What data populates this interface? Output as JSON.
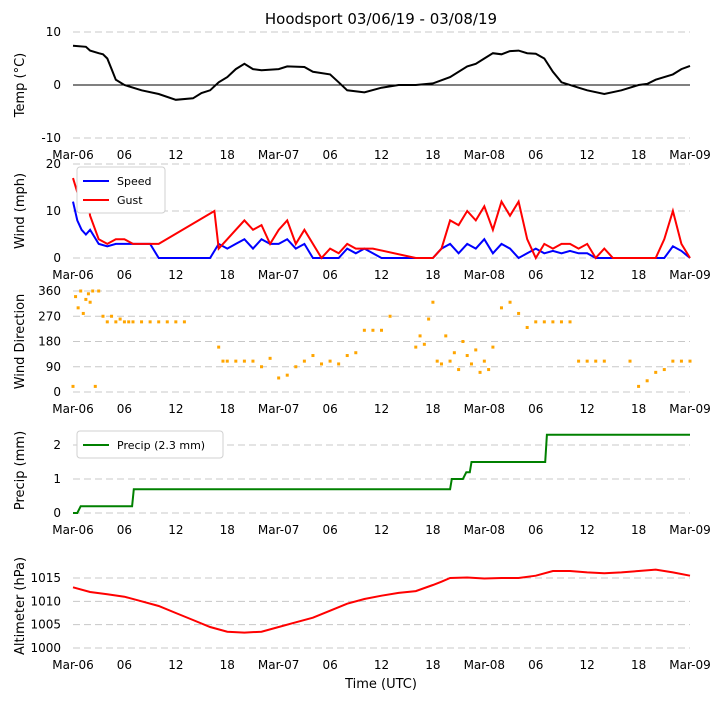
{
  "figure": {
    "title": "Hoodsport 03/06/19 - 03/08/19",
    "xlabel": "Time (UTC)"
  },
  "chart_data": [
    {
      "id": "temp",
      "type": "line",
      "ylabel": "Temp (°C)",
      "ylim": [
        -10,
        10
      ],
      "yticks": [
        -10,
        0,
        10
      ],
      "grid": true,
      "zero_line": true,
      "xlim": [
        0,
        72
      ],
      "xtick_labels": [
        "Mar-06",
        "06",
        "12",
        "18",
        "Mar-07",
        "06",
        "12",
        "18",
        "Mar-08",
        "06",
        "12",
        "18",
        "Mar-09"
      ],
      "series": [
        {
          "name": "Temp",
          "color": "#000000",
          "x": [
            0,
            1.5,
            2,
            3,
            3.5,
            4,
            4.5,
            5,
            6,
            8,
            10,
            12,
            14,
            15,
            16,
            17,
            18,
            19,
            20,
            21,
            22,
            24,
            25,
            27,
            28,
            30,
            31,
            32,
            34,
            36,
            38,
            40,
            42,
            44,
            46,
            47,
            48,
            49,
            50,
            51,
            52,
            53,
            54,
            55,
            56,
            57,
            59,
            60,
            62,
            64,
            66,
            67,
            68,
            70,
            71,
            72
          ],
          "y": [
            7.4,
            7.2,
            6.5,
            6,
            5.8,
            5,
            3,
            1,
            0,
            -1,
            -1.7,
            -2.8,
            -2.5,
            -1.5,
            -1,
            0.5,
            1.5,
            3,
            4,
            3,
            2.8,
            3,
            3.5,
            3.4,
            2.5,
            2,
            0.5,
            -1,
            -1.4,
            -0.5,
            0,
            0,
            0.3,
            1.5,
            3.5,
            4,
            5,
            6,
            5.8,
            6.4,
            6.5,
            6,
            5.9,
            5,
            2.5,
            0.5,
            -0.5,
            -1,
            -1.7,
            -1,
            0,
            0.2,
            1,
            2,
            3,
            3.6
          ]
        }
      ]
    },
    {
      "id": "wind",
      "type": "line",
      "ylabel": "Wind (mph)",
      "ylim": [
        0,
        20
      ],
      "yticks": [
        0,
        10,
        20
      ],
      "grid": true,
      "xlim": [
        0,
        72
      ],
      "xtick_labels": [
        "Mar-06",
        "06",
        "12",
        "18",
        "Mar-07",
        "06",
        "12",
        "18",
        "Mar-08",
        "06",
        "12",
        "18",
        "Mar-09"
      ],
      "legend": {
        "placement": "top-left",
        "entries": [
          "Speed",
          "Gust"
        ]
      },
      "series": [
        {
          "name": "Speed",
          "color": "#0000ff",
          "x": [
            0,
            0.5,
            1,
            1.5,
            2,
            3,
            4,
            5,
            6,
            7,
            8,
            9,
            10,
            11,
            12,
            13,
            16,
            17,
            18,
            19,
            20,
            21,
            22,
            23,
            24,
            25,
            26,
            27,
            28,
            30,
            31,
            32,
            33,
            34,
            36,
            38,
            40,
            42,
            43,
            44,
            45,
            46,
            47,
            48,
            49,
            50,
            51,
            52,
            53,
            54,
            55,
            56,
            57,
            58,
            59,
            60,
            61,
            62,
            66,
            67,
            68,
            69,
            70,
            71,
            72
          ],
          "y": [
            12,
            8,
            6,
            5,
            6,
            3,
            2.5,
            3,
            3,
            3,
            3,
            3,
            0,
            0,
            0,
            0,
            0,
            3,
            2,
            3,
            4,
            2,
            4,
            3,
            3,
            4,
            2,
            3,
            0,
            0,
            0,
            2,
            1,
            2,
            0,
            0,
            0,
            0,
            2,
            3,
            1,
            3,
            2,
            4,
            1,
            3,
            2,
            0,
            1,
            2,
            1,
            1.5,
            1,
            1.5,
            1,
            1,
            0,
            0,
            0,
            0,
            0,
            0,
            2.5,
            1.5,
            0
          ]
        },
        {
          "name": "Gust",
          "color": "#ff0000",
          "x": [
            0,
            0.5,
            1,
            1.5,
            2,
            3,
            4,
            5,
            6,
            7,
            8,
            9,
            10,
            16.5,
            17,
            18,
            19,
            20,
            21,
            22,
            23,
            24,
            25,
            26,
            27,
            29,
            30,
            31,
            32,
            33,
            34,
            35,
            40,
            41,
            42,
            43,
            44,
            45,
            46,
            47,
            48,
            49,
            50,
            51,
            52,
            53,
            54,
            55,
            56,
            57,
            58,
            59,
            60,
            61,
            62,
            63,
            68,
            69,
            70,
            71,
            72
          ],
          "y": [
            17,
            14,
            11,
            15,
            9,
            4,
            3,
            4,
            4,
            3,
            3,
            3,
            3,
            10,
            2,
            4,
            6,
            8,
            6,
            7,
            3,
            6,
            8,
            3,
            6,
            0,
            2,
            1,
            3,
            2,
            2,
            2,
            0,
            0,
            0,
            2,
            8,
            7,
            10,
            8,
            11,
            6,
            12,
            9,
            12,
            4,
            0,
            3,
            2,
            3,
            3,
            2,
            3,
            0,
            2,
            0,
            0,
            4,
            10,
            3,
            0
          ]
        }
      ]
    },
    {
      "id": "winddir",
      "type": "scatter",
      "ylabel": "Wind Direction",
      "ylim": [
        0,
        360
      ],
      "yticks": [
        0,
        90,
        180,
        270,
        360
      ],
      "grid": true,
      "xlim": [
        0,
        72
      ],
      "xtick_labels": [
        "Mar-06",
        "06",
        "12",
        "18",
        "Mar-07",
        "06",
        "12",
        "18",
        "Mar-08",
        "06",
        "12",
        "18",
        "Mar-09"
      ],
      "series": [
        {
          "name": "Direction",
          "color": "#ffa500",
          "x": [
            0,
            0.3,
            0.6,
            0.9,
            1.2,
            1.5,
            1.8,
            2,
            2.3,
            2.6,
            3,
            3.5,
            4,
            4.5,
            5,
            5.5,
            6,
            6.5,
            7,
            8,
            9,
            10,
            11,
            12,
            13,
            17,
            17.5,
            18,
            19,
            20,
            21,
            22,
            23,
            24,
            25,
            26,
            27,
            28,
            29,
            30,
            31,
            32,
            33,
            34,
            35,
            36,
            37,
            40,
            40.5,
            41,
            41.5,
            42,
            42.5,
            43,
            43.5,
            44,
            44.5,
            45,
            45.5,
            46,
            46.5,
            47,
            47.5,
            48,
            48.5,
            49,
            50,
            51,
            52,
            53,
            54,
            55,
            56,
            57,
            58,
            59,
            60,
            61,
            62,
            65,
            66,
            67,
            68,
            69,
            70,
            71,
            72
          ],
          "y": [
            20,
            340,
            300,
            360,
            280,
            330,
            350,
            320,
            360,
            20,
            360,
            270,
            250,
            270,
            250,
            260,
            250,
            250,
            250,
            250,
            250,
            250,
            250,
            250,
            250,
            160,
            110,
            110,
            110,
            110,
            110,
            90,
            120,
            50,
            60,
            90,
            110,
            130,
            100,
            110,
            100,
            130,
            140,
            220,
            220,
            220,
            270,
            160,
            200,
            170,
            260,
            320,
            110,
            100,
            200,
            110,
            140,
            80,
            180,
            130,
            100,
            150,
            70,
            110,
            80,
            160,
            300,
            320,
            280,
            230,
            250,
            250,
            250,
            250,
            250,
            110,
            110,
            110,
            110,
            110,
            20,
            40,
            70,
            80,
            110,
            110,
            110
          ]
        }
      ]
    },
    {
      "id": "precip",
      "type": "line",
      "ylabel": "Precip (mm)",
      "ylim": [
        0,
        2.5
      ],
      "yticks": [
        0,
        1,
        2
      ],
      "grid": true,
      "xlim": [
        0,
        72
      ],
      "xtick_labels": [
        "Mar-06",
        "06",
        "12",
        "18",
        "Mar-07",
        "06",
        "12",
        "18",
        "Mar-08",
        "06",
        "12",
        "18",
        "Mar-09"
      ],
      "legend": {
        "placement": "top-left",
        "entries": [
          "Precip (2.3 mm)"
        ]
      },
      "series": [
        {
          "name": "Precip (2.3 mm)",
          "color": "#008000",
          "x": [
            0,
            0.5,
            0.9,
            6.9,
            7.1,
            44,
            44.2,
            45.5,
            45.9,
            46.3,
            46.5,
            55.1,
            55.3,
            72
          ],
          "y": [
            0,
            0,
            0.2,
            0.2,
            0.7,
            0.7,
            1.0,
            1.0,
            1.2,
            1.2,
            1.5,
            1.5,
            2.3,
            2.3
          ]
        }
      ]
    },
    {
      "id": "altimeter",
      "type": "line",
      "ylabel": "Altimeter (hPa)",
      "ylim": [
        1000,
        1018
      ],
      "yticks": [
        1000,
        1005,
        1010,
        1015
      ],
      "grid": true,
      "xlim": [
        0,
        72
      ],
      "xtick_labels": [
        "Mar-06",
        "06",
        "12",
        "18",
        "Mar-07",
        "06",
        "12",
        "18",
        "Mar-08",
        "06",
        "12",
        "18",
        "Mar-09"
      ],
      "series": [
        {
          "name": "Altimeter",
          "color": "#ff0000",
          "x": [
            0,
            2,
            4,
            6,
            8,
            10,
            12,
            14,
            16,
            18,
            20,
            22,
            24,
            26,
            28,
            30,
            32,
            34,
            36,
            38,
            40,
            42,
            43,
            44,
            46,
            48,
            50,
            52,
            54,
            56,
            58,
            60,
            62,
            64,
            66,
            68,
            70,
            72
          ],
          "y": [
            1013,
            1012,
            1011.5,
            1011,
            1010,
            1009,
            1007.5,
            1006,
            1004.5,
            1003.5,
            1003.3,
            1003.5,
            1004.5,
            1005.5,
            1006.5,
            1008,
            1009.5,
            1010.5,
            1011.2,
            1011.8,
            1012.2,
            1013.5,
            1014.2,
            1015,
            1015.1,
            1014.9,
            1015,
            1015,
            1015.5,
            1016.5,
            1016.5,
            1016.2,
            1016,
            1016.2,
            1016.5,
            1016.8,
            1016.2,
            1015.5
          ]
        }
      ]
    }
  ]
}
